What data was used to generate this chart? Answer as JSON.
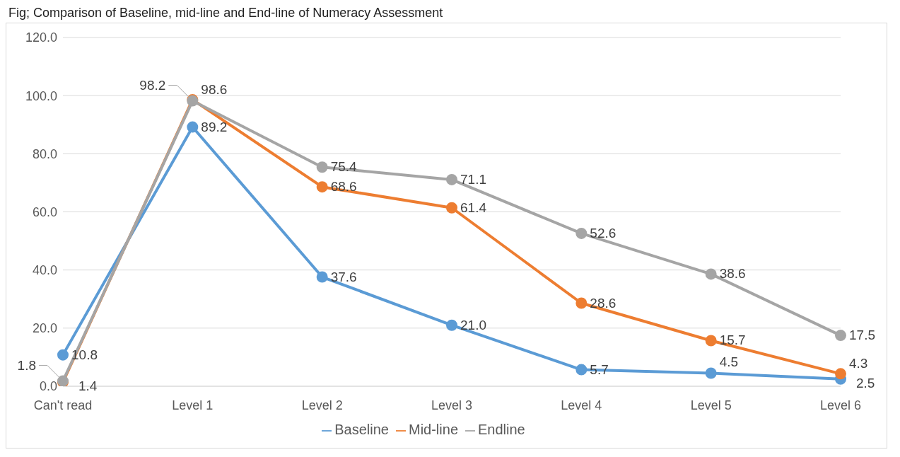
{
  "chart_data": {
    "type": "line",
    "title": "Fig; Comparison of Baseline, mid-line and End-line of Numeracy Assessment",
    "categories": [
      "Can't read",
      "Level 1",
      "Level 2",
      "Level 3",
      "Level 4",
      "Level 5",
      "Level 6"
    ],
    "series": [
      {
        "name": "Baseline",
        "color": "#5b9bd5",
        "values": [
          10.8,
          89.2,
          37.6,
          21.0,
          5.7,
          4.5,
          2.5
        ],
        "value_labels": [
          "10.8",
          "89.2",
          "37.6",
          "21.0",
          "5.7",
          "4.5",
          "2.5"
        ]
      },
      {
        "name": "Mid-line",
        "color": "#ed7d31",
        "values": [
          1.4,
          98.6,
          68.6,
          61.4,
          28.6,
          15.7,
          4.3
        ],
        "value_labels": [
          "1.4",
          "98.6",
          "68.6",
          "61.4",
          "28.6",
          "15.7",
          "4.3"
        ]
      },
      {
        "name": "Endline",
        "color": "#a5a5a5",
        "values": [
          1.8,
          98.2,
          75.4,
          71.1,
          52.6,
          38.6,
          17.5
        ],
        "value_labels": [
          "1.8",
          "98.2",
          "75.4",
          "71.1",
          "52.6",
          "38.6",
          "17.5"
        ]
      }
    ],
    "ylim": [
      0,
      120
    ],
    "yticks": [
      {
        "value": 0,
        "label": "0.0"
      },
      {
        "value": 20,
        "label": "20.0"
      },
      {
        "value": 40,
        "label": "40.0"
      },
      {
        "value": 60,
        "label": "60.0"
      },
      {
        "value": 80,
        "label": "80.0"
      },
      {
        "value": 100,
        "label": "100.0"
      },
      {
        "value": 120,
        "label": "120.0"
      }
    ],
    "grid": "y",
    "legend": "bottom",
    "marker": "circle",
    "line_style": "solid"
  }
}
